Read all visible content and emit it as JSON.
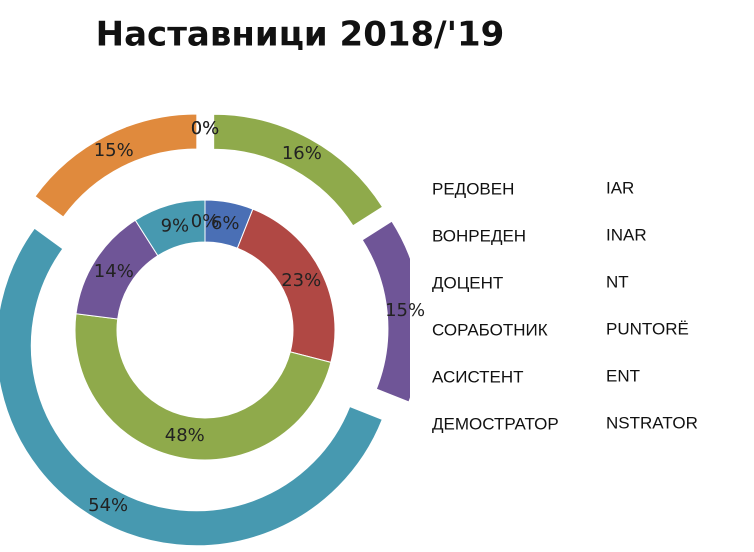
{
  "chart_data": {
    "type": "doughnut",
    "title": "Наставници 2018/'19",
    "categories": [
      "РЕДОВЕН",
      "ВОНРЕДЕН",
      "ДОЦЕНТ",
      "СОРАБОТНИК",
      "АСИСТЕНТ",
      "ДЕМОСТРАТОР"
    ],
    "categories_2": [
      "IAR",
      "INAR",
      "NT",
      "PUNTORË",
      "ENT",
      "NSTRATOR"
    ],
    "colors": [
      "#4a6fb5",
      "#b04844",
      "#8faa4b",
      "#6f5597",
      "#4799b0",
      "#e08a3d"
    ],
    "series": [
      {
        "values": [
          6,
          23,
          48,
          14,
          9,
          0
        ],
        "value_labels": [
          "6%",
          "23%",
          "48%",
          "14%",
          "9%",
          "0%"
        ]
      },
      {
        "values": [
          0,
          0,
          16,
          15,
          54,
          15
        ],
        "value_labels": [
          "0%",
          "0%",
          "16%",
          "15%",
          "54%",
          "15%"
        ],
        "exploded": true
      }
    ]
  }
}
